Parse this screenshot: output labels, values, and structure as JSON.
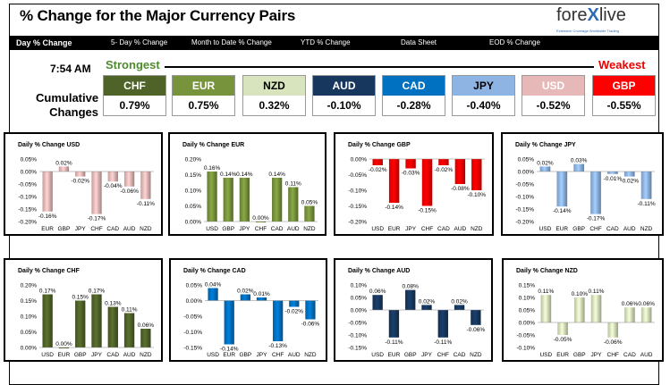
{
  "header": {
    "title": "% Change for the Major Currency Pairs",
    "logo_word_pre": "fore",
    "logo_word_x": "X",
    "logo_word_post": "live",
    "logo_tagline": "Extensive Coverage Worldwide Trading"
  },
  "tabs": [
    {
      "label": "Day % Change"
    },
    {
      "label": "5- Day % Change"
    },
    {
      "label": "Month to Date % Change"
    },
    {
      "label": "YTD % Change"
    },
    {
      "label": "Data Sheet"
    },
    {
      "label": "EOD % Change"
    }
  ],
  "summary": {
    "time": "7:54 AM",
    "strongest_label": "Strongest",
    "weakest_label": "Weakest",
    "cumulative_label_1": "Cumulative",
    "cumulative_label_2": "Changes",
    "currencies": [
      {
        "code": "CHF",
        "value": "0.79%",
        "bg": "#4f6228",
        "fg": "#ffffff"
      },
      {
        "code": "EUR",
        "value": "0.75%",
        "bg": "#77933c",
        "fg": "#ffffff"
      },
      {
        "code": "NZD",
        "value": "0.32%",
        "bg": "#d7e4bd",
        "fg": "#000000"
      },
      {
        "code": "AUD",
        "value": "-0.10%",
        "bg": "#17375e",
        "fg": "#ffffff"
      },
      {
        "code": "CAD",
        "value": "-0.28%",
        "bg": "#0070c0",
        "fg": "#ffffff"
      },
      {
        "code": "JPY",
        "value": "-0.40%",
        "bg": "#8eb4e3",
        "fg": "#000000"
      },
      {
        "code": "USD",
        "value": "-0.52%",
        "bg": "#e6b9b8",
        "fg": "#ffffff"
      },
      {
        "code": "GBP",
        "value": "-0.55%",
        "bg": "#ff0000",
        "fg": "#ffffff"
      }
    ]
  },
  "chart_data": [
    {
      "type": "bar",
      "title": "Daily % Change USD",
      "categories": [
        "EUR",
        "GBP",
        "JPY",
        "CHF",
        "CAD",
        "AUD",
        "NZD"
      ],
      "values": [
        -0.16,
        0.02,
        -0.02,
        -0.17,
        -0.04,
        -0.06,
        -0.11
      ],
      "labels": [
        "-0.16%",
        "0.02%",
        "-0.02%",
        "-0.17%",
        "-0.04%",
        "-0.06%",
        "-0.11%"
      ],
      "ylim": [
        -0.2,
        0.05
      ],
      "yticks": [
        "0.05%",
        "0.00%",
        "-0.05%",
        "-0.10%",
        "-0.15%",
        "-0.20%"
      ],
      "color": "#e6b9b8"
    },
    {
      "type": "bar",
      "title": "Daily % Change EUR",
      "categories": [
        "USD",
        "GBP",
        "JPY",
        "CHF",
        "CAD",
        "AUD",
        "NZD"
      ],
      "values": [
        0.16,
        0.14,
        0.14,
        0.0,
        0.14,
        0.11,
        0.05
      ],
      "labels": [
        "0.16%",
        "0.14%",
        "0.14%",
        "0.00%",
        "0.14%",
        "0.11%",
        "0.05%"
      ],
      "ylim": [
        0,
        0.2
      ],
      "yticks": [
        "0.20%",
        "0.15%",
        "0.10%",
        "0.05%",
        "0.00%"
      ],
      "color": "#77933c"
    },
    {
      "type": "bar",
      "title": "Daily % Change GBP",
      "categories": [
        "USD",
        "EUR",
        "JPY",
        "CHF",
        "CAD",
        "AUD",
        "NZD"
      ],
      "values": [
        -0.02,
        -0.14,
        -0.03,
        -0.15,
        -0.02,
        -0.08,
        -0.1
      ],
      "labels": [
        "-0.02%",
        "-0.14%",
        "-0.03%",
        "-0.15%",
        "-0.02%",
        "-0.08%",
        "-0.10%"
      ],
      "ylim": [
        -0.2,
        0.0
      ],
      "yticks": [
        "0.00%",
        "-0.05%",
        "-0.10%",
        "-0.15%",
        "-0.20%"
      ],
      "color": "#ff0000"
    },
    {
      "type": "bar",
      "title": "Daily % Change JPY",
      "categories": [
        "USD",
        "EUR",
        "GBP",
        "CHF",
        "CAD",
        "AUD",
        "NZD"
      ],
      "values": [
        0.02,
        -0.14,
        0.03,
        -0.17,
        -0.01,
        -0.02,
        -0.11
      ],
      "labels": [
        "0.02%",
        "-0.14%",
        "0.03%",
        "-0.17%",
        "-0.01%",
        "-0.02%",
        "-0.11%"
      ],
      "ylim": [
        -0.2,
        0.05
      ],
      "yticks": [
        "0.05%",
        "0.00%",
        "-0.05%",
        "-0.10%",
        "-0.15%",
        "-0.20%"
      ],
      "color": "#8eb4e3"
    },
    {
      "type": "bar",
      "title": "Daily % Change CHF",
      "categories": [
        "USD",
        "EUR",
        "GBP",
        "JPY",
        "CAD",
        "AUD",
        "NZD"
      ],
      "values": [
        0.17,
        0.0,
        0.15,
        0.17,
        0.13,
        0.11,
        0.06
      ],
      "labels": [
        "0.17%",
        "0.00%",
        "0.15%",
        "0.17%",
        "0.13%",
        "0.11%",
        "0.06%"
      ],
      "ylim": [
        0,
        0.2
      ],
      "yticks": [
        "0.20%",
        "0.15%",
        "0.10%",
        "0.05%",
        "0.00%"
      ],
      "color": "#4f6228"
    },
    {
      "type": "bar",
      "title": "Daily % Change CAD",
      "categories": [
        "USD",
        "EUR",
        "GBP",
        "JPY",
        "CHF",
        "AUD",
        "NZD"
      ],
      "values": [
        0.04,
        -0.14,
        0.02,
        0.01,
        -0.13,
        -0.02,
        -0.06
      ],
      "labels": [
        "0.04%",
        "-0.14%",
        "0.02%",
        "0.01%",
        "-0.13%",
        "-0.02%",
        "-0.06%"
      ],
      "ylim": [
        -0.15,
        0.05
      ],
      "yticks": [
        "0.05%",
        "0.00%",
        "-0.05%",
        "-0.10%",
        "-0.15%"
      ],
      "color": "#0070c0"
    },
    {
      "type": "bar",
      "title": "Daily % Change AUD",
      "categories": [
        "USD",
        "EUR",
        "GBP",
        "JPY",
        "CHF",
        "CAD",
        "NZD"
      ],
      "values": [
        0.06,
        -0.11,
        0.08,
        0.02,
        -0.11,
        0.02,
        -0.06
      ],
      "labels": [
        "0.06%",
        "-0.11%",
        "0.08%",
        "0.02%",
        "-0.11%",
        "0.02%",
        "-0.06%"
      ],
      "ylim": [
        -0.15,
        0.1
      ],
      "yticks": [
        "0.10%",
        "0.05%",
        "0.00%",
        "-0.05%",
        "-0.10%",
        "-0.15%"
      ],
      "color": "#17375e"
    },
    {
      "type": "bar",
      "title": "Daily % Change NZD",
      "categories": [
        "USD",
        "EUR",
        "GBP",
        "JPY",
        "CHF",
        "CAD",
        "AUD"
      ],
      "values": [
        0.11,
        -0.05,
        0.1,
        0.11,
        -0.06,
        0.06,
        0.06
      ],
      "labels": [
        "0.11%",
        "-0.05%",
        "0.10%",
        "0.11%",
        "-0.06%",
        "0.06%",
        "0.06%"
      ],
      "ylim": [
        -0.1,
        0.15
      ],
      "yticks": [
        "0.15%",
        "0.10%",
        "0.05%",
        "0.00%",
        "-0.05%",
        "-0.10%"
      ],
      "color": "#d7e4bd"
    }
  ]
}
